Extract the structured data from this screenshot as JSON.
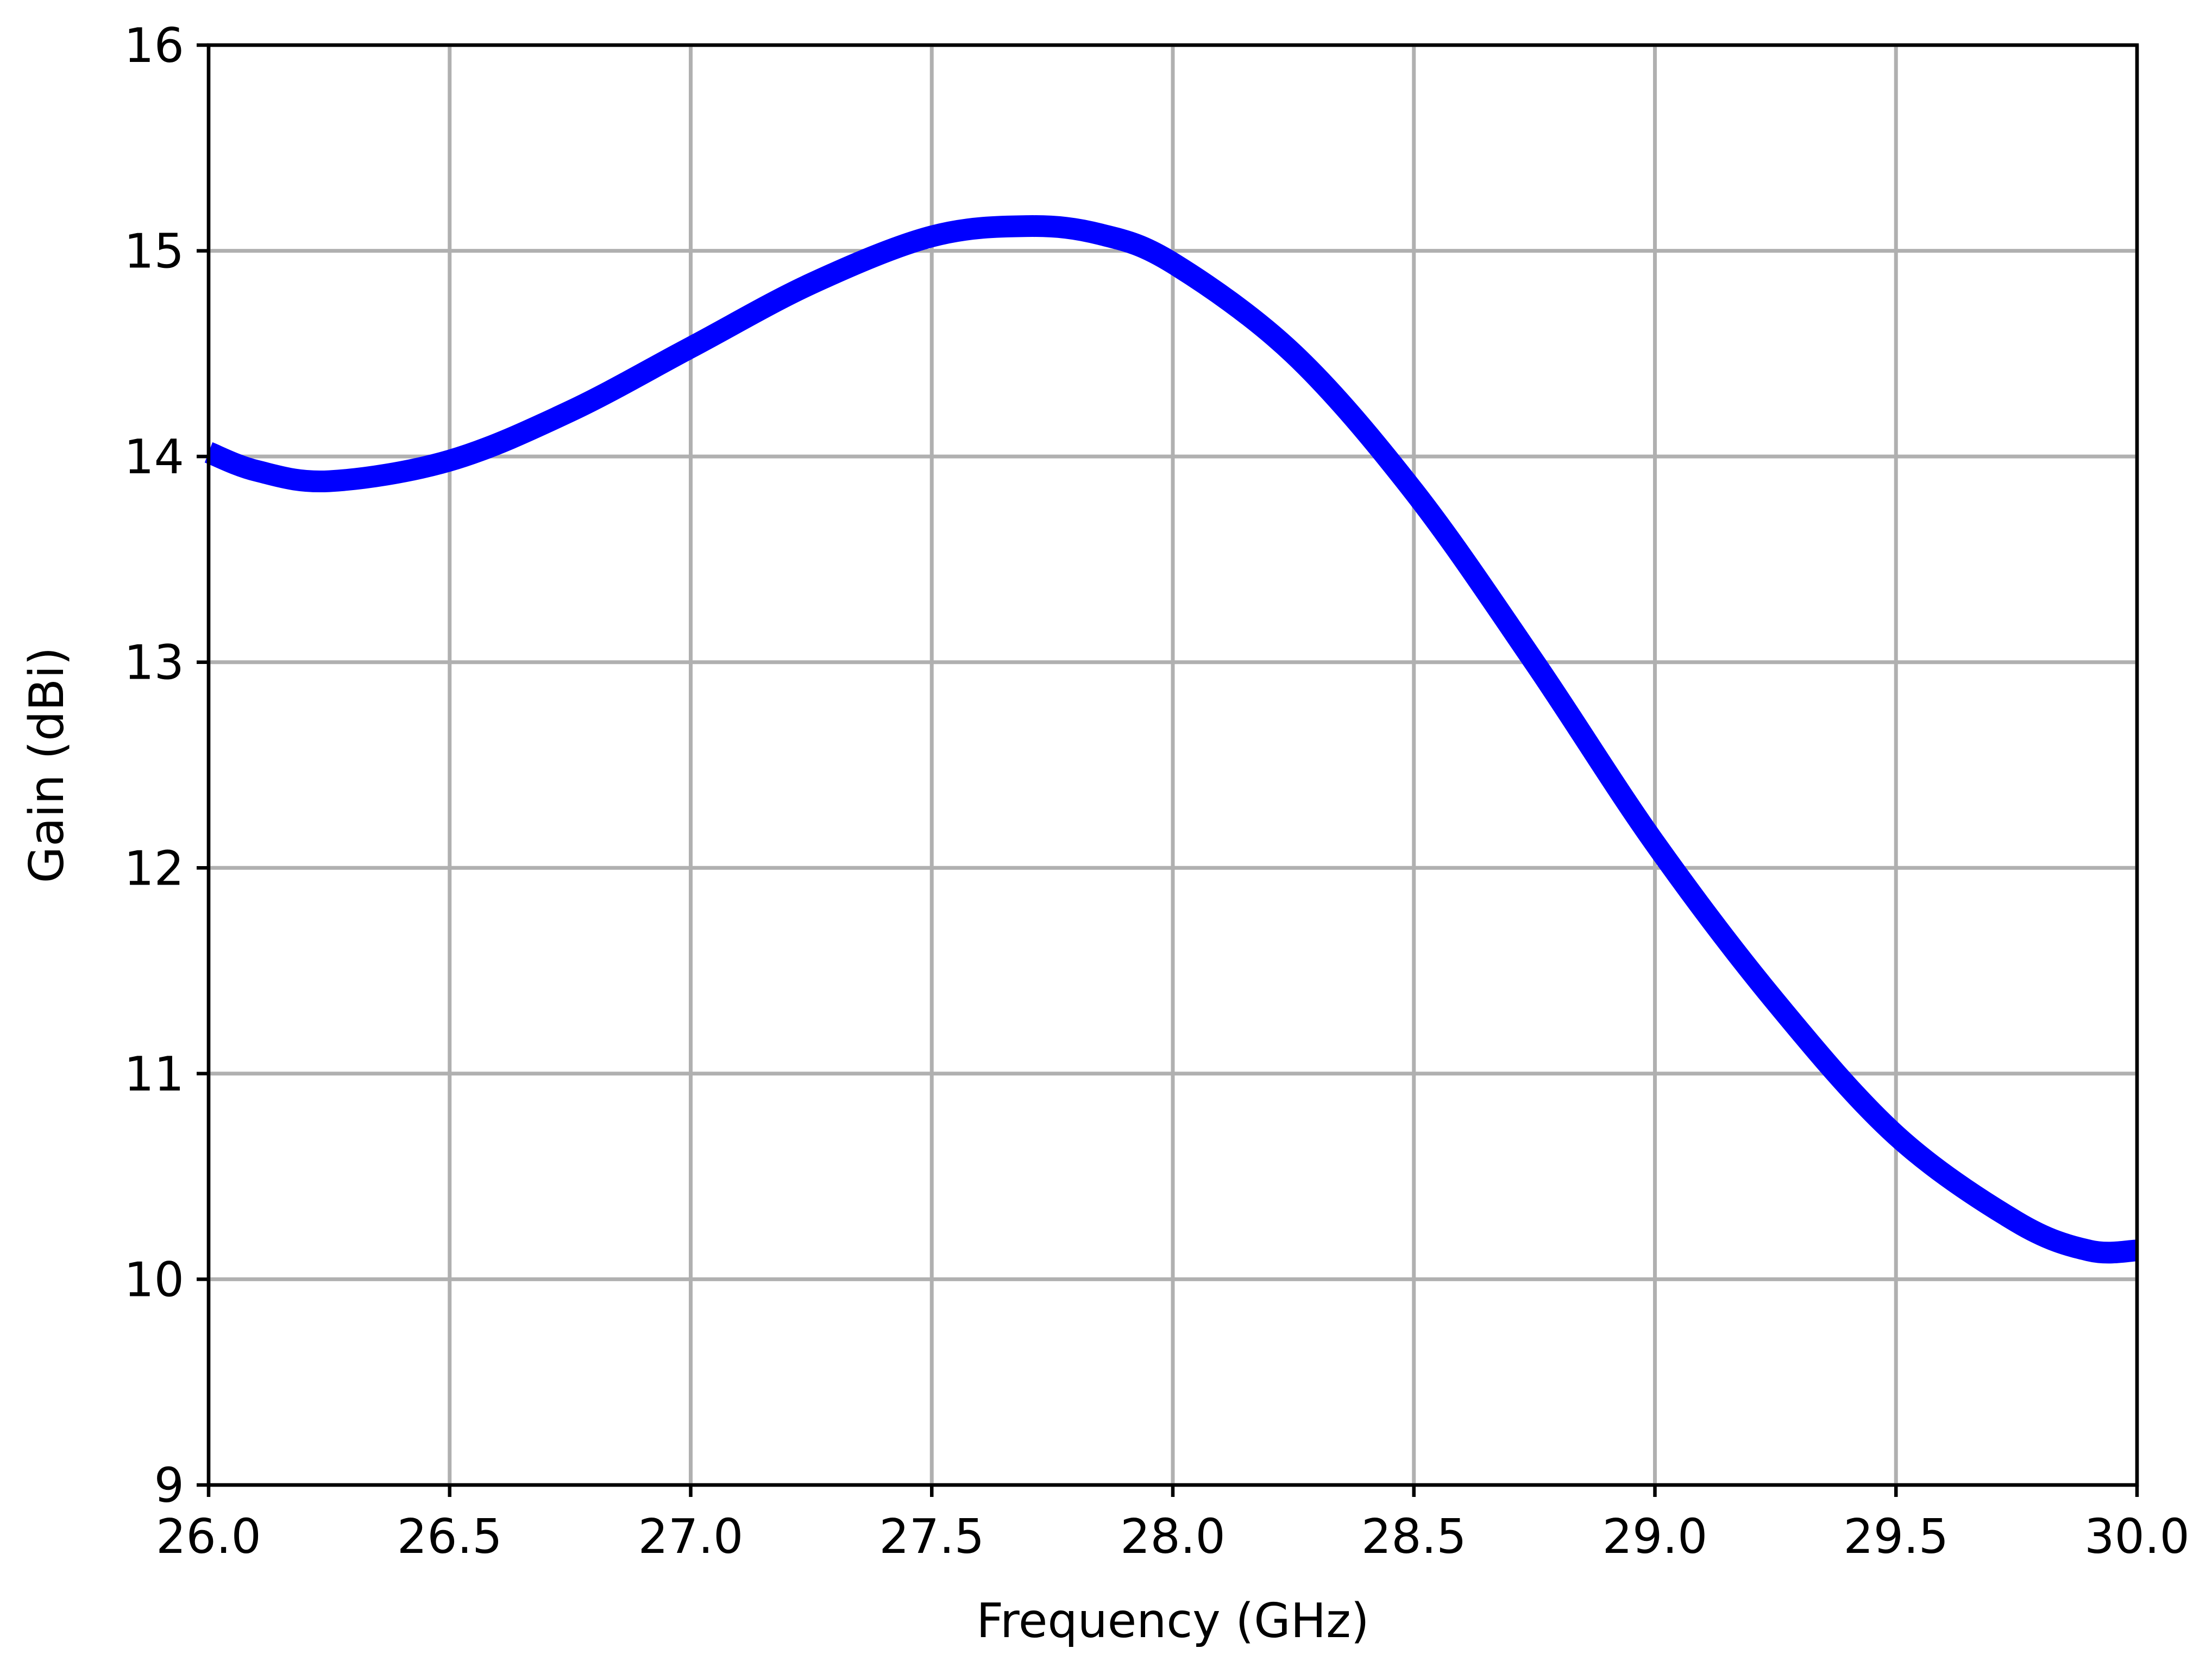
{
  "chart_data": {
    "type": "line",
    "title": "",
    "xlabel": "Frequency (GHz)",
    "ylabel": "Gain (dBi)",
    "xlim": [
      26.0,
      30.0
    ],
    "ylim": [
      9,
      16
    ],
    "xticks": [
      "26.0",
      "26.5",
      "27.0",
      "27.5",
      "28.0",
      "28.5",
      "29.0",
      "29.5",
      "30.0"
    ],
    "yticks": [
      "9",
      "10",
      "11",
      "12",
      "13",
      "14",
      "15",
      "16"
    ],
    "grid": true,
    "legend": "none",
    "series": [
      {
        "color": "#0000ff",
        "x": [
          26.0,
          26.1,
          26.25,
          26.5,
          26.75,
          27.0,
          27.25,
          27.5,
          27.7,
          27.85,
          28.0,
          28.25,
          28.5,
          28.75,
          29.0,
          29.25,
          29.5,
          29.75,
          29.9,
          30.0
        ],
        "y": [
          14.02,
          13.93,
          13.88,
          13.98,
          14.22,
          14.53,
          14.84,
          15.07,
          15.12,
          15.08,
          14.94,
          14.5,
          13.83,
          13.0,
          12.12,
          11.35,
          10.7,
          10.28,
          10.14,
          10.14
        ]
      }
    ]
  }
}
